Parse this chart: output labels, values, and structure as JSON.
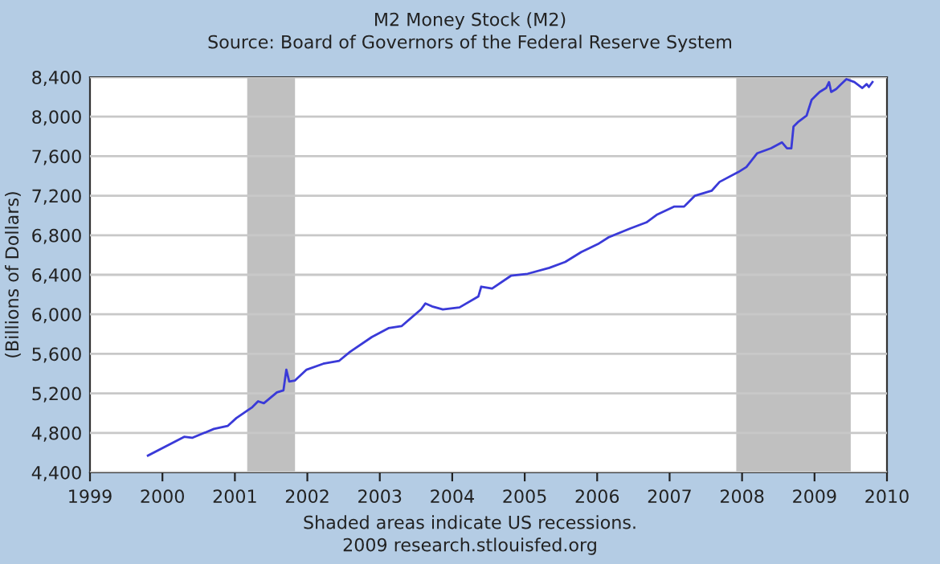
{
  "chart_data": {
    "type": "line",
    "title": "M2 Money Stock (M2)",
    "subtitle": "Source: Board of Governors of the Federal Reserve System",
    "ylabel": "(Billions of Dollars)",
    "annotations": [
      "Shaded areas indicate US recessions.",
      "2009 research.stlouisfed.org"
    ],
    "x": [
      1999.8,
      2000.3,
      2000.41,
      2000.71,
      2000.9,
      2001.02,
      2001.24,
      2001.32,
      2001.4,
      2001.58,
      2001.67,
      2001.71,
      2001.75,
      2001.83,
      2001.99,
      2002.22,
      2002.44,
      2002.59,
      2002.89,
      2003.12,
      2003.3,
      2003.57,
      2003.63,
      2003.72,
      2003.87,
      2004.1,
      2004.36,
      2004.4,
      2004.55,
      2004.81,
      2005.04,
      2005.34,
      2005.56,
      2005.78,
      2006.01,
      2006.16,
      2006.46,
      2006.68,
      2006.83,
      2007.06,
      2007.2,
      2007.35,
      2007.58,
      2007.69,
      2007.95,
      2008.06,
      2008.21,
      2008.4,
      2008.55,
      2008.62,
      2008.68,
      2008.71,
      2008.78,
      2008.89,
      2008.96,
      2009.07,
      2009.16,
      2009.2,
      2009.23,
      2009.3,
      2009.37,
      2009.44,
      2009.55,
      2009.66,
      2009.72,
      2009.75,
      2009.8
    ],
    "series": [
      {
        "color": "#3a3ad8",
        "values": [
          4570,
          4760,
          4750,
          4840,
          4870,
          4950,
          5060,
          5120,
          5100,
          5210,
          5230,
          5440,
          5320,
          5330,
          5440,
          5500,
          5530,
          5620,
          5770,
          5860,
          5880,
          6050,
          6110,
          6080,
          6050,
          6070,
          6180,
          6280,
          6260,
          6390,
          6410,
          6470,
          6530,
          6630,
          6710,
          6780,
          6870,
          6930,
          7010,
          7090,
          7090,
          7200,
          7250,
          7340,
          7440,
          7490,
          7630,
          7680,
          7740,
          7680,
          7680,
          7900,
          7950,
          8010,
          8170,
          8250,
          8290,
          8350,
          8250,
          8280,
          8330,
          8380,
          8350,
          8290,
          8330,
          8300,
          8350
        ]
      }
    ],
    "xlim": [
      1999,
      2010
    ],
    "xticks": [
      1999,
      2000,
      2001,
      2002,
      2003,
      2004,
      2005,
      2006,
      2007,
      2008,
      2009,
      2010
    ],
    "ylim": [
      4400,
      8400
    ],
    "yticks": [
      {
        "value": 4400,
        "label": "4,400"
      },
      {
        "value": 4800,
        "label": "4,800"
      },
      {
        "value": 5200,
        "label": "5,200"
      },
      {
        "value": 5600,
        "label": "5,600"
      },
      {
        "value": 6000,
        "label": "6,000"
      },
      {
        "value": 6400,
        "label": "6,400"
      },
      {
        "value": 6800,
        "label": "6,800"
      },
      {
        "value": 7200,
        "label": "7,200"
      },
      {
        "value": 7600,
        "label": "7,600"
      },
      {
        "value": 8000,
        "label": "8,000"
      },
      {
        "value": 8400,
        "label": "8,400"
      }
    ],
    "bands": [
      {
        "axis": "x",
        "from": 2001.17,
        "to": 2001.83,
        "color": "#c0c0c0"
      },
      {
        "axis": "x",
        "from": 2007.92,
        "to": 2009.5,
        "color": "#c0c0c0"
      }
    ],
    "grid": "y",
    "line_style": "solid",
    "marker": "none"
  }
}
